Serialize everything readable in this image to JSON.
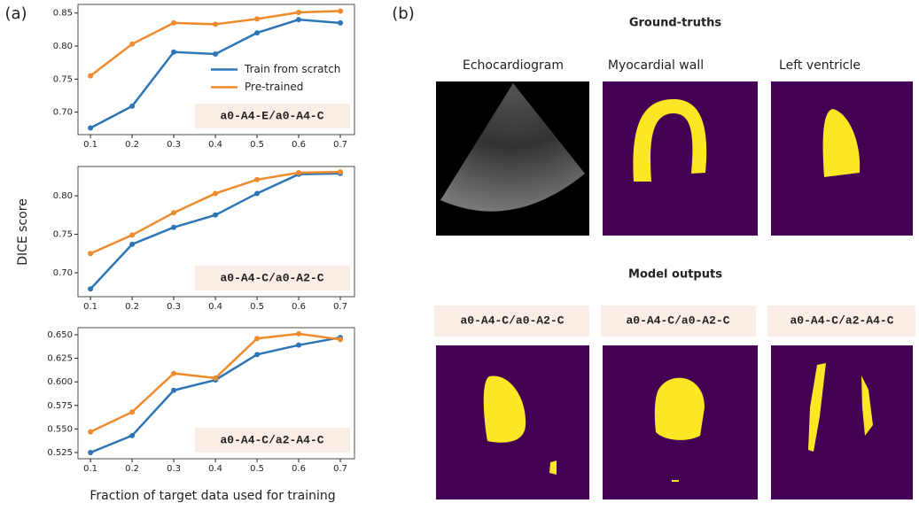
{
  "panel_labels": [
    "(a)",
    "(b)"
  ],
  "shared_ylabel": "DICE score",
  "shared_xlabel": "Fraction of target data used for training",
  "chart_data": [
    {
      "type": "line",
      "annotation": "a0-A4-E/a0-A4-C",
      "legend": "center right",
      "x": [
        0.1,
        0.2,
        0.3,
        0.4,
        0.5,
        0.6,
        0.7
      ],
      "series": [
        {
          "name": "Train from scratch",
          "color": "#2e75b6",
          "values": [
            0.676,
            0.709,
            0.791,
            0.788,
            0.82,
            0.84,
            0.835
          ]
        },
        {
          "name": "Pre-trained",
          "color": "#ef8a2d",
          "values": [
            0.755,
            0.803,
            0.835,
            0.833,
            0.841,
            0.851,
            0.853
          ]
        }
      ],
      "xlim": [
        0.07,
        0.734
      ],
      "ylim": [
        0.666,
        0.863
      ],
      "xticks": [
        0.1,
        0.2,
        0.3,
        0.4,
        0.5,
        0.6,
        0.7
      ],
      "yticks": [
        {
          "value": 0.7,
          "label": "0.70"
        },
        0.75,
        {
          "value": 0.8,
          "label": "0.80"
        },
        0.85
      ]
    },
    {
      "type": "line",
      "annotation": "a0-A4-C/a0-A2-C",
      "x": [
        0.1,
        0.2,
        0.3,
        0.4,
        0.5,
        0.6,
        0.7
      ],
      "series": [
        {
          "color": "#2e75b6",
          "values": [
            0.679,
            0.737,
            0.759,
            0.775,
            0.803,
            0.828,
            0.829
          ]
        },
        {
          "color": "#ef8a2d",
          "values": [
            0.725,
            0.749,
            0.778,
            0.803,
            0.821,
            0.83,
            0.831
          ]
        }
      ],
      "xlim": [
        0.07,
        0.734
      ],
      "ylim": [
        0.669,
        0.838
      ],
      "xticks": [
        0.1,
        0.2,
        0.3,
        0.4,
        0.5,
        0.6,
        0.7
      ],
      "yticks": [
        {
          "value": 0.7,
          "label": "0.70"
        },
        0.75,
        {
          "value": 0.8,
          "label": "0.80"
        }
      ]
    },
    {
      "type": "line",
      "annotation": "a0-A4-C/a2-A4-C",
      "x": [
        0.1,
        0.2,
        0.3,
        0.4,
        0.5,
        0.6,
        0.7
      ],
      "series": [
        {
          "color": "#2e75b6",
          "values": [
            0.525,
            0.543,
            0.591,
            0.602,
            0.629,
            0.639,
            0.647
          ]
        },
        {
          "color": "#ef8a2d",
          "values": [
            0.547,
            0.568,
            0.609,
            0.604,
            0.646,
            0.651,
            0.645
          ]
        }
      ],
      "xlim": [
        0.07,
        0.734
      ],
      "ylim": [
        0.5184,
        0.6575
      ],
      "xticks": [
        0.1,
        0.2,
        0.3,
        0.4,
        0.5,
        0.6,
        0.7
      ],
      "yticks": [
        0.525,
        {
          "value": 0.55,
          "label": "0.550"
        },
        0.575,
        {
          "value": 0.6,
          "label": "0.600"
        },
        0.625,
        {
          "value": 0.65,
          "label": "0.650"
        }
      ]
    }
  ],
  "panel_b": {
    "ground_truth_title": "Ground-truths",
    "ground_truth_labels": [
      "Echocardiogram",
      "Myocardial wall",
      "Left ventricle"
    ],
    "model_outputs_title": "Model outputs",
    "model_output_labels": [
      "a0-A4-C/a0-A2-C",
      "a0-A4-C/a0-A2-C",
      "a0-A4-C/a2-A4-C"
    ]
  }
}
